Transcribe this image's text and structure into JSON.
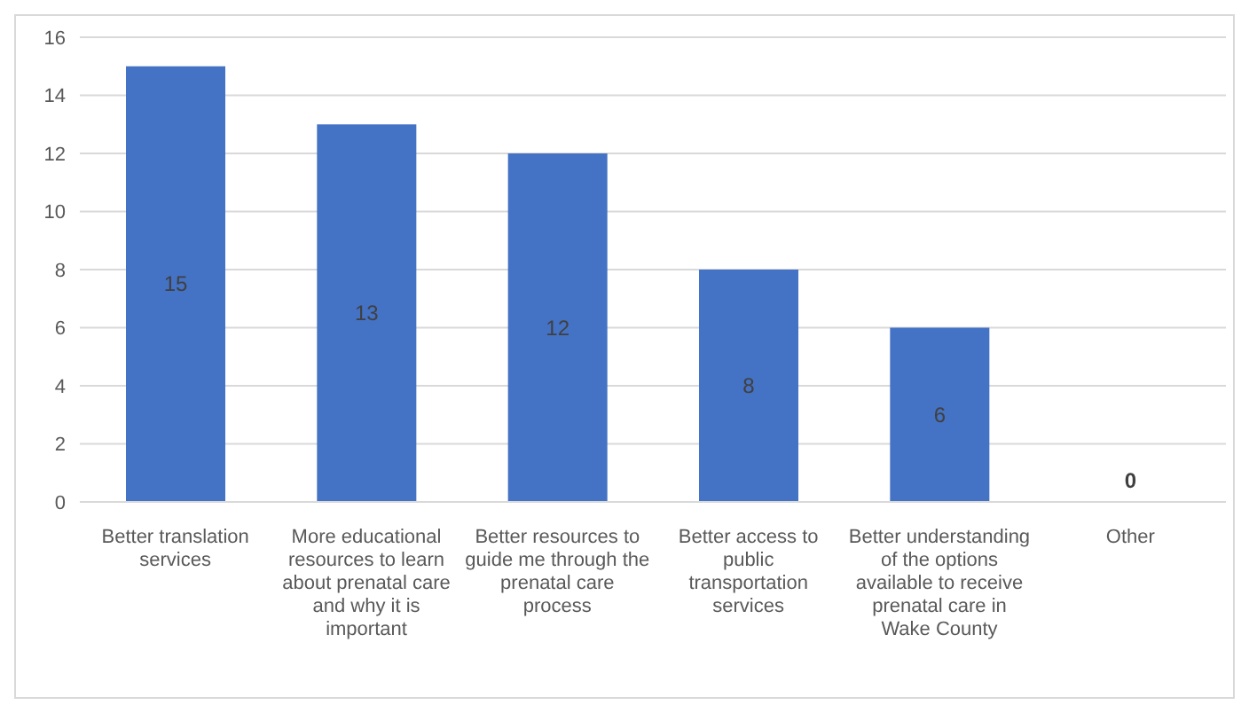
{
  "chart_data": {
    "type": "bar",
    "categories": [
      "Better translation services",
      "More educational resources to learn about prenatal care and why it is important",
      "Better resources to guide me through the prenatal care process",
      "Better access to public transportation services",
      "Better understanding of the options available to receive prenatal care in Wake County",
      "Other"
    ],
    "values": [
      15,
      13,
      12,
      8,
      6,
      0
    ],
    "color": "#4472c4",
    "ylim": [
      0,
      16
    ],
    "yticks": [
      0,
      2,
      4,
      6,
      8,
      10,
      12,
      14,
      16
    ],
    "grid": "y",
    "data_labels": true
  }
}
